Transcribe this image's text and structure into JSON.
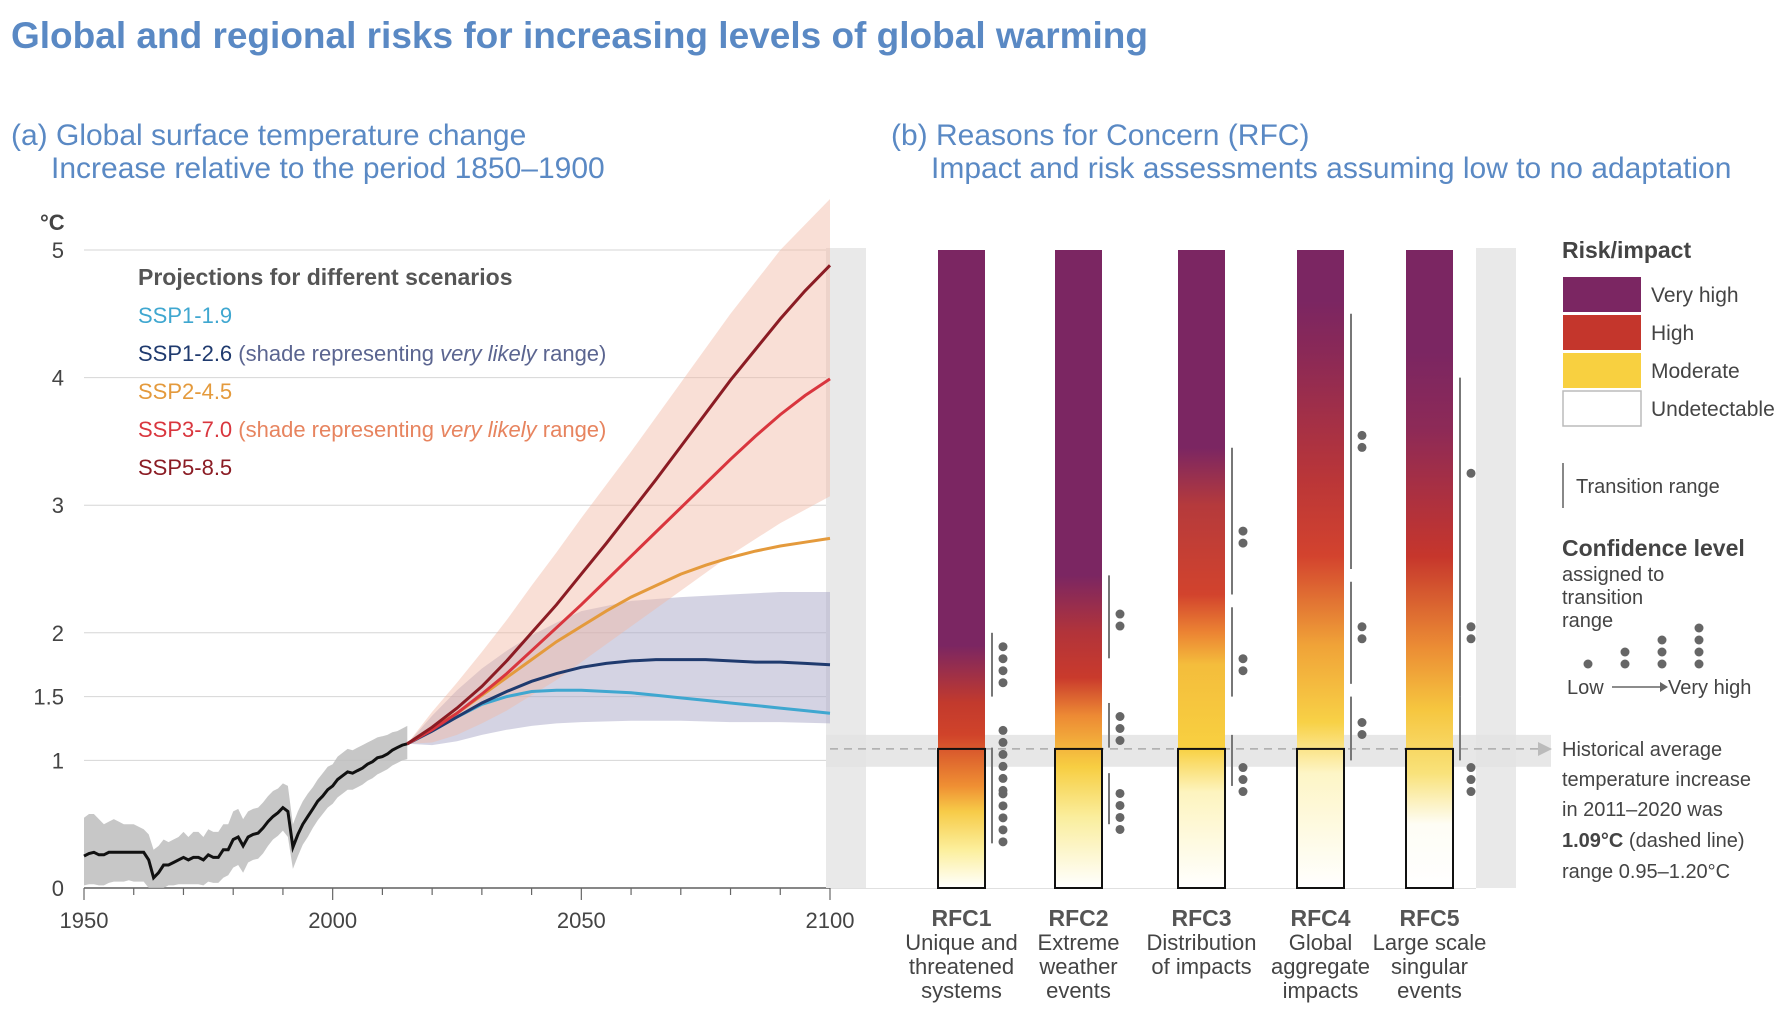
{
  "title": "Global and regional risks for increasing levels of global warming",
  "panel_a": {
    "title_line1": "(a) Global surface temperature change",
    "title_line2": "Increase relative to the period 1850–1900",
    "y_unit": "°C",
    "legend_header": "Projections for different scenarios",
    "legend": [
      {
        "name": "SSP1-1.9",
        "note_pre": "",
        "note_em": "",
        "note_post": "",
        "color": "#3fa7d0"
      },
      {
        "name": "SSP1-2.6",
        "note_pre": "(shade representing ",
        "note_em": "very likely",
        "note_post": " range)",
        "color": "#1f3a6e",
        "note_color": "#5b6590"
      },
      {
        "name": "SSP2-4.5",
        "note_pre": "",
        "note_em": "",
        "note_post": "",
        "color": "#e49a3c"
      },
      {
        "name": "SSP3-7.0",
        "note_pre": "(shade representing ",
        "note_em": "very likely",
        "note_post": " range)",
        "color": "#d9363e",
        "note_color": "#e7845f"
      },
      {
        "name": "SSP5-8.5",
        "note_pre": "",
        "note_em": "",
        "note_post": "",
        "color": "#8b1c24"
      }
    ]
  },
  "panel_b": {
    "title_line1": "(b) Reasons for Concern (RFC)",
    "title_line2": "Impact and risk assessments assuming low to no adaptation",
    "legend_header": "Risk/impact",
    "risk_levels": [
      {
        "label": "Very high",
        "color": "#7b2662"
      },
      {
        "label": "High",
        "color": "#c4362c"
      },
      {
        "label": "Moderate",
        "color": "#f8d040"
      },
      {
        "label": "Undetectable",
        "color": "#ffffff"
      }
    ],
    "transition_label": "Transition range",
    "confidence_header": "Confidence level",
    "confidence_sub": [
      "assigned to",
      "transition",
      "range"
    ],
    "confidence_low": "Low",
    "confidence_high": "Very high",
    "historical_note": [
      "Historical average",
      "temperature increase",
      "in 2011–2020 was"
    ],
    "historical_value": "1.09°C",
    "historical_value_suffix": " (dashed line)",
    "historical_range": "range 0.95–1.20°C",
    "rfc": [
      {
        "code": "RFC1",
        "desc": [
          "Unique and",
          "threatened",
          "systems"
        ]
      },
      {
        "code": "RFC2",
        "desc": [
          "Extreme",
          "weather",
          "events"
        ]
      },
      {
        "code": "RFC3",
        "desc": [
          "Distribution",
          "of impacts"
        ]
      },
      {
        "code": "RFC4",
        "desc": [
          "Global",
          "aggregate",
          "impacts"
        ]
      },
      {
        "code": "RFC5",
        "desc": [
          "Large scale",
          "singular",
          "events"
        ]
      }
    ]
  },
  "chart_data": {
    "type": "line",
    "xlim": [
      1950,
      2100
    ],
    "ylim": [
      0,
      5
    ],
    "x_ticks": [
      1950,
      2000,
      2050,
      2100
    ],
    "y_ticks": [
      0,
      1,
      1.5,
      2,
      3,
      4,
      5
    ],
    "historical": {
      "name": "",
      "x": [
        1950,
        1951,
        1952,
        1953,
        1954,
        1955,
        1956,
        1957,
        1958,
        1959,
        1960,
        1961,
        1962,
        1963,
        1964,
        1965,
        1966,
        1967,
        1968,
        1969,
        1970,
        1971,
        1972,
        1973,
        1974,
        1975,
        1976,
        1977,
        1978,
        1979,
        1980,
        1981,
        1982,
        1983,
        1984,
        1985,
        1986,
        1987,
        1988,
        1989,
        1990,
        1991,
        1992,
        1993,
        1994,
        1995,
        1996,
        1997,
        1998,
        1999,
        2000,
        2001,
        2002,
        2003,
        2004,
        2005,
        2006,
        2007,
        2008,
        2009,
        2010,
        2011,
        2012,
        2013,
        2014,
        2015
      ],
      "y": [
        0.25,
        0.27,
        0.28,
        0.26,
        0.26,
        0.28,
        0.28,
        0.28,
        0.28,
        0.28,
        0.28,
        0.28,
        0.28,
        0.22,
        0.08,
        0.12,
        0.18,
        0.18,
        0.2,
        0.22,
        0.24,
        0.22,
        0.24,
        0.24,
        0.22,
        0.26,
        0.24,
        0.24,
        0.3,
        0.3,
        0.38,
        0.4,
        0.33,
        0.4,
        0.42,
        0.43,
        0.47,
        0.52,
        0.56,
        0.59,
        0.63,
        0.6,
        0.32,
        0.42,
        0.5,
        0.56,
        0.62,
        0.68,
        0.72,
        0.77,
        0.8,
        0.85,
        0.88,
        0.91,
        0.9,
        0.92,
        0.94,
        0.97,
        0.99,
        1.02,
        1.03,
        1.05,
        1.08,
        1.1,
        1.12,
        1.13
      ],
      "band_low": [
        0.02,
        0.03,
        0.03,
        0.02,
        0.02,
        0.04,
        0.05,
        0.05,
        0.05,
        0.06,
        0.05,
        0.05,
        0.05,
        0.0,
        0.0,
        0.0,
        0.0,
        0.02,
        0.02,
        0.03,
        0.03,
        0.03,
        0.03,
        0.03,
        0.02,
        0.05,
        0.04,
        0.04,
        0.08,
        0.1,
        0.16,
        0.18,
        0.12,
        0.2,
        0.22,
        0.23,
        0.27,
        0.33,
        0.38,
        0.41,
        0.45,
        0.4,
        0.15,
        0.25,
        0.34,
        0.4,
        0.47,
        0.53,
        0.58,
        0.63,
        0.66,
        0.71,
        0.74,
        0.77,
        0.77,
        0.79,
        0.81,
        0.84,
        0.86,
        0.89,
        0.91,
        0.93,
        0.96,
        0.98,
        1.0,
        1.01
      ],
      "band_high": [
        0.55,
        0.58,
        0.58,
        0.54,
        0.5,
        0.52,
        0.54,
        0.52,
        0.5,
        0.5,
        0.5,
        0.48,
        0.46,
        0.42,
        0.3,
        0.33,
        0.38,
        0.36,
        0.38,
        0.4,
        0.44,
        0.4,
        0.44,
        0.44,
        0.4,
        0.46,
        0.44,
        0.44,
        0.5,
        0.5,
        0.6,
        0.62,
        0.54,
        0.6,
        0.62,
        0.63,
        0.67,
        0.72,
        0.76,
        0.78,
        0.82,
        0.8,
        0.5,
        0.6,
        0.68,
        0.74,
        0.79,
        0.85,
        0.9,
        0.95,
        0.97,
        1.03,
        1.06,
        1.09,
        1.08,
        1.1,
        1.12,
        1.14,
        1.16,
        1.18,
        1.19,
        1.2,
        1.22,
        1.23,
        1.25,
        1.27
      ]
    },
    "series": [
      {
        "name": "SSP1-1.9",
        "color": "#3fa7d0",
        "x": [
          2015,
          2020,
          2025,
          2030,
          2035,
          2040,
          2045,
          2050,
          2055,
          2060,
          2065,
          2070,
          2075,
          2080,
          2085,
          2090,
          2095,
          2100
        ],
        "y": [
          1.13,
          1.23,
          1.34,
          1.44,
          1.5,
          1.54,
          1.55,
          1.55,
          1.54,
          1.53,
          1.51,
          1.49,
          1.47,
          1.45,
          1.43,
          1.41,
          1.39,
          1.37
        ]
      },
      {
        "name": "SSP1-2.6",
        "color": "#1f3a6e",
        "x": [
          2015,
          2020,
          2025,
          2030,
          2035,
          2040,
          2045,
          2050,
          2055,
          2060,
          2065,
          2070,
          2075,
          2080,
          2085,
          2090,
          2095,
          2100
        ],
        "y": [
          1.13,
          1.23,
          1.34,
          1.45,
          1.54,
          1.62,
          1.68,
          1.73,
          1.76,
          1.78,
          1.79,
          1.79,
          1.79,
          1.78,
          1.77,
          1.77,
          1.76,
          1.75
        ]
      },
      {
        "name": "SSP2-4.5",
        "color": "#e49a3c",
        "x": [
          2015,
          2020,
          2025,
          2030,
          2035,
          2040,
          2045,
          2050,
          2055,
          2060,
          2065,
          2070,
          2075,
          2080,
          2085,
          2090,
          2095,
          2100
        ],
        "y": [
          1.13,
          1.25,
          1.37,
          1.51,
          1.65,
          1.79,
          1.93,
          2.05,
          2.17,
          2.28,
          2.37,
          2.46,
          2.53,
          2.59,
          2.64,
          2.68,
          2.71,
          2.74
        ]
      },
      {
        "name": "SSP3-7.0",
        "color": "#d9363e",
        "x": [
          2015,
          2020,
          2025,
          2030,
          2035,
          2040,
          2045,
          2050,
          2055,
          2060,
          2065,
          2070,
          2075,
          2080,
          2085,
          2090,
          2095,
          2100
        ],
        "y": [
          1.13,
          1.24,
          1.37,
          1.52,
          1.68,
          1.86,
          2.04,
          2.22,
          2.41,
          2.6,
          2.79,
          2.98,
          3.17,
          3.36,
          3.54,
          3.71,
          3.86,
          3.99
        ]
      },
      {
        "name": "SSP5-8.5",
        "color": "#8b1c24",
        "x": [
          2015,
          2020,
          2025,
          2030,
          2035,
          2040,
          2045,
          2050,
          2055,
          2060,
          2065,
          2070,
          2075,
          2080,
          2085,
          2090,
          2095,
          2100
        ],
        "y": [
          1.13,
          1.26,
          1.41,
          1.58,
          1.78,
          2.0,
          2.22,
          2.46,
          2.7,
          2.95,
          3.2,
          3.46,
          3.72,
          3.98,
          4.22,
          4.46,
          4.68,
          4.88
        ]
      }
    ],
    "bands": [
      {
        "name": "SSP1-2.6 very likely range",
        "color": "#a9a8c8",
        "x": [
          2015,
          2020,
          2025,
          2030,
          2035,
          2040,
          2045,
          2050,
          2060,
          2070,
          2080,
          2090,
          2100
        ],
        "low": [
          1.13,
          1.12,
          1.15,
          1.2,
          1.24,
          1.27,
          1.29,
          1.3,
          1.31,
          1.31,
          1.3,
          1.3,
          1.29
        ],
        "high": [
          1.13,
          1.35,
          1.55,
          1.72,
          1.86,
          1.98,
          2.08,
          2.17,
          2.25,
          2.28,
          2.3,
          2.32,
          2.32
        ]
      },
      {
        "name": "SSP3-7.0 very likely range",
        "color": "#f2b7a4",
        "x": [
          2015,
          2020,
          2025,
          2030,
          2035,
          2040,
          2045,
          2050,
          2060,
          2070,
          2080,
          2090,
          2100
        ],
        "low": [
          1.13,
          1.14,
          1.2,
          1.29,
          1.39,
          1.51,
          1.63,
          1.77,
          2.05,
          2.33,
          2.61,
          2.86,
          3.07
        ],
        "high": [
          1.13,
          1.38,
          1.61,
          1.85,
          2.1,
          2.37,
          2.63,
          2.9,
          3.42,
          3.96,
          4.5,
          5.0,
          5.4
        ]
      }
    ],
    "historical_mean_2011_2020": 1.09,
    "historical_range_2011_2020": [
      0.95,
      1.2
    ],
    "rfc_bars": [
      {
        "name": "RFC1",
        "stops": [
          [
            0.0,
            "#ffffff"
          ],
          [
            0.3,
            "#fcef9c"
          ],
          [
            0.6,
            "#f7cb48"
          ],
          [
            0.8,
            "#ef8f33"
          ],
          [
            1.2,
            "#d0432a"
          ],
          [
            1.45,
            "#c23a2d"
          ],
          [
            1.9,
            "#7b2662"
          ],
          [
            5.0,
            "#7b2662"
          ]
        ],
        "transitions": [
          [
            0.35,
            1.1
          ],
          [
            1.5,
            2.0
          ]
        ],
        "dots": [
          [
            0.55,
            5
          ],
          [
            1.0,
            6
          ],
          [
            1.75,
            4
          ]
        ]
      },
      {
        "name": "RFC2",
        "stops": [
          [
            0.0,
            "#ffffff"
          ],
          [
            0.55,
            "#faee9e"
          ],
          [
            0.95,
            "#f7ce42"
          ],
          [
            1.35,
            "#ed8a34"
          ],
          [
            1.65,
            "#c93a2c"
          ],
          [
            2.0,
            "#b2343a"
          ],
          [
            2.45,
            "#7b2662"
          ],
          [
            5.0,
            "#7b2662"
          ]
        ],
        "transitions": [
          [
            0.5,
            0.9
          ],
          [
            1.1,
            1.45
          ],
          [
            1.8,
            2.45
          ]
        ],
        "dots": [
          [
            0.6,
            4
          ],
          [
            1.25,
            3
          ],
          [
            2.1,
            2
          ]
        ]
      },
      {
        "name": "RFC3",
        "stops": [
          [
            0.0,
            "#ffffff"
          ],
          [
            0.75,
            "#fdf4bf"
          ],
          [
            1.1,
            "#f8d040"
          ],
          [
            1.75,
            "#f4bd3c"
          ],
          [
            2.0,
            "#ec8433"
          ],
          [
            2.3,
            "#d2432d"
          ],
          [
            3.0,
            "#b53a3c"
          ],
          [
            3.45,
            "#7b2662"
          ],
          [
            5.0,
            "#7b2662"
          ]
        ],
        "transitions": [
          [
            0.8,
            1.2
          ],
          [
            1.5,
            2.2
          ],
          [
            2.3,
            3.45
          ]
        ],
        "dots": [
          [
            0.85,
            3
          ],
          [
            1.75,
            2
          ],
          [
            2.75,
            2
          ]
        ]
      },
      {
        "name": "RFC4",
        "stops": [
          [
            0.0,
            "#ffffff"
          ],
          [
            0.9,
            "#fdf5c6"
          ],
          [
            1.3,
            "#f8d146"
          ],
          [
            1.9,
            "#f0a338"
          ],
          [
            2.6,
            "#d3432e"
          ],
          [
            3.2,
            "#ba3638"
          ],
          [
            4.2,
            "#8a2957"
          ],
          [
            4.6,
            "#7b2662"
          ],
          [
            5.0,
            "#7b2662"
          ]
        ],
        "transitions": [
          [
            1.0,
            1.5
          ],
          [
            1.6,
            2.4
          ],
          [
            2.5,
            4.5
          ]
        ],
        "dots": [
          [
            1.25,
            2
          ],
          [
            2.0,
            2
          ],
          [
            3.5,
            2
          ]
        ]
      },
      {
        "name": "RFC5",
        "stops": [
          [
            0.0,
            "#ffffff"
          ],
          [
            0.5,
            "#fefdf5"
          ],
          [
            0.9,
            "#f9e27a"
          ],
          [
            1.4,
            "#f6c63f"
          ],
          [
            1.9,
            "#eb8b34"
          ],
          [
            2.6,
            "#c6362c"
          ],
          [
            3.6,
            "#8d2a57"
          ],
          [
            4.2,
            "#7b2662"
          ],
          [
            5.0,
            "#7b2662"
          ]
        ],
        "transitions": [
          [
            1.0,
            1.5
          ],
          [
            1.5,
            2.5
          ],
          [
            2.5,
            4.0
          ]
        ],
        "dots": [
          [
            0.85,
            3
          ],
          [
            2.0,
            2
          ],
          [
            3.25,
            1
          ]
        ]
      }
    ]
  }
}
